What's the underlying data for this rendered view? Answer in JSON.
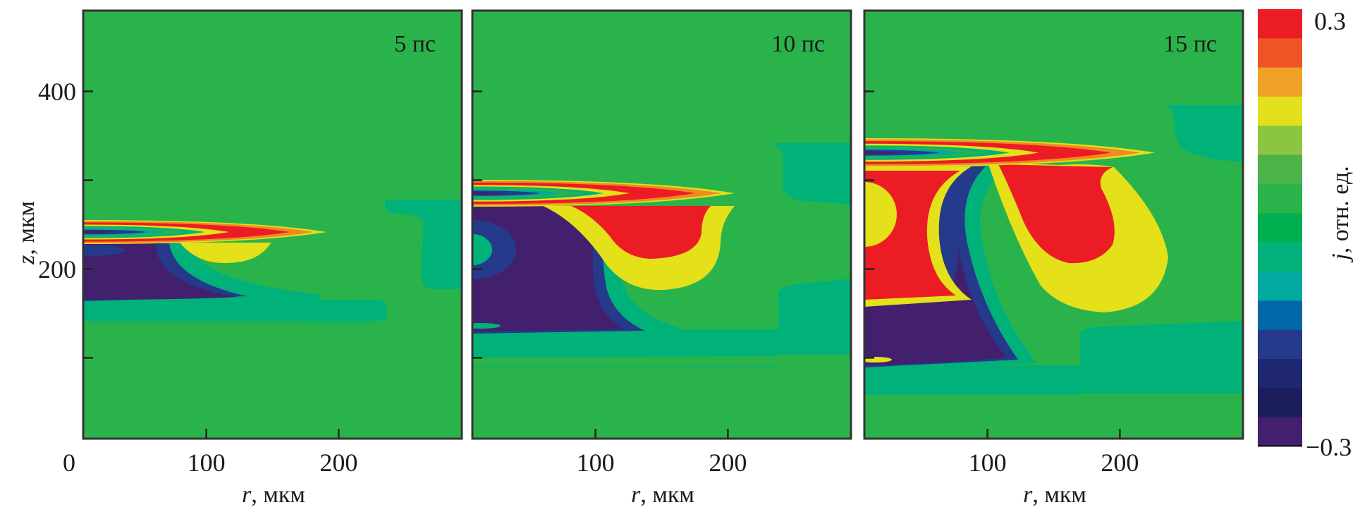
{
  "chart_data": {
    "type": "heatmap",
    "variable": "j",
    "panels": [
      {
        "label": "5 пс",
        "time_ps": 5
      },
      {
        "label": "10 пс",
        "time_ps": 10
      },
      {
        "label": "15 пс",
        "time_ps": 15
      }
    ],
    "xaxis": {
      "label_var": "r",
      "label_unit": ", мкм",
      "range": [
        7,
        293
      ],
      "ticks": [
        100,
        200
      ],
      "first_panel_extra_label": "0"
    },
    "yaxis": {
      "label_var": "z",
      "label_unit": ", мкм",
      "range": [
        9,
        491
      ],
      "ticks": [
        100,
        200,
        300,
        400
      ],
      "tick_labels": {
        "200": "200",
        "400": "400"
      }
    },
    "colorbar": {
      "label_var": "j",
      "label_unit": ", отн. ед.",
      "min": -0.3,
      "max": 0.3,
      "min_label": "−0.3",
      "max_label": "0.3",
      "levels": 15,
      "colors": [
        "#ec1c24",
        "#ef5524",
        "#eea126",
        "#e2e01c",
        "#8cc540",
        "#4db24a",
        "#2bb34b",
        "#00b04f",
        "#00b27a",
        "#00aaa0",
        "#0068a6",
        "#253a8a",
        "#1e2670",
        "#1c1e5c",
        "#43206e"
      ]
    },
    "grid": false
  },
  "colors": {
    "background": "#2bb34b",
    "red": "#ec1c24",
    "orange": "#f08a24",
    "yellow": "#e4e01a",
    "tealgreen": "#00b27a",
    "teal": "#00aaa0",
    "blue": "#0068a6",
    "darkblue": "#253a8a",
    "purple": "#43206e",
    "navy": "#1c1e5c"
  }
}
